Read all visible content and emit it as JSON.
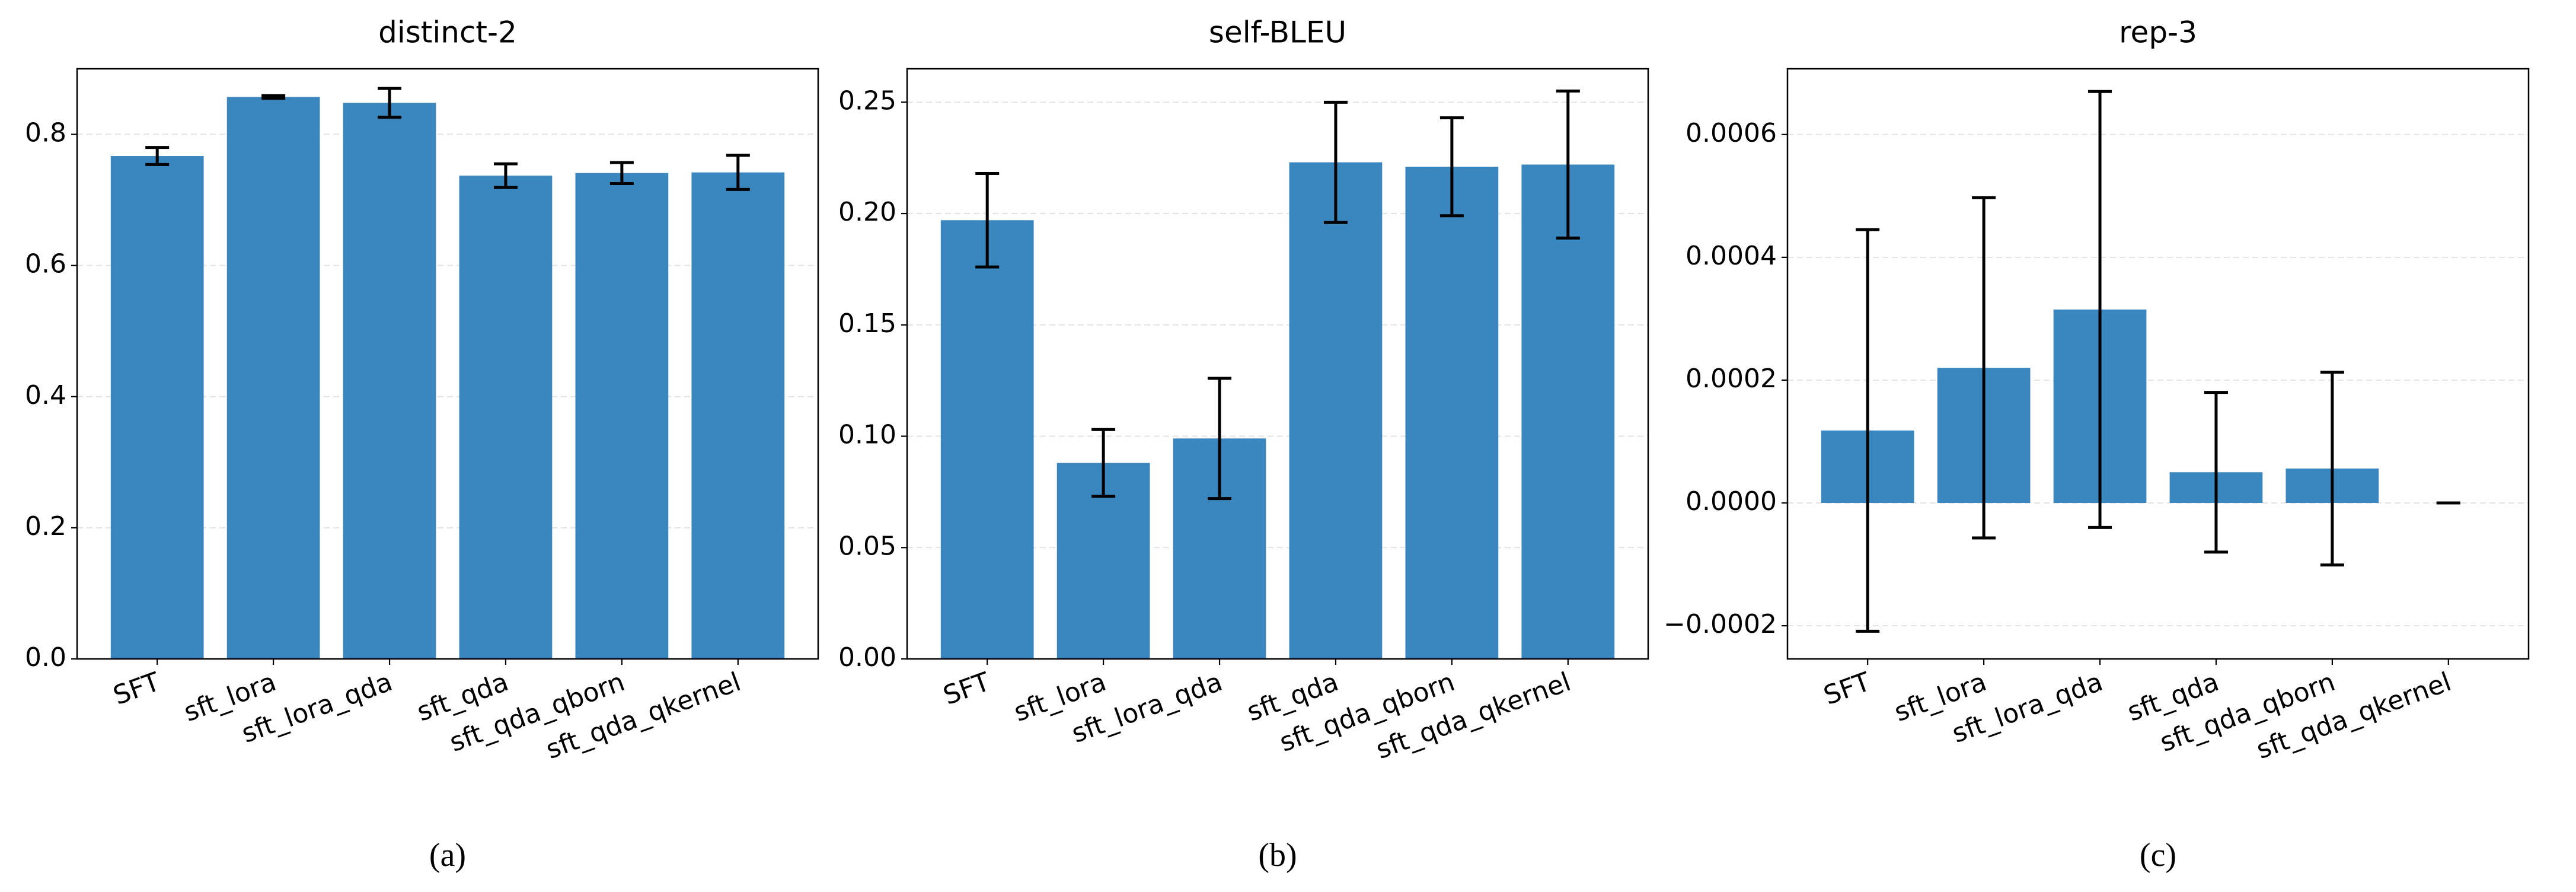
{
  "chart_data": [
    {
      "type": "bar",
      "title": "distinct-2",
      "caption": "(a)",
      "categories": [
        "SFT",
        "sft_lora",
        "sft_lora_qda",
        "sft_qda",
        "sft_qda_qborn",
        "sft_qda_qkernel"
      ],
      "values": [
        0.767,
        0.857,
        0.848,
        0.737,
        0.741,
        0.742
      ],
      "errors": [
        0.013,
        0.002,
        0.022,
        0.018,
        0.016,
        0.026
      ],
      "color": "#3a86bf",
      "ylim": [
        0,
        0.9
      ],
      "yticks": [
        {
          "value": 0,
          "label": "0.0"
        },
        0.2,
        0.4,
        0.6,
        0.8
      ],
      "grid": true
    },
    {
      "type": "bar",
      "title": "self-BLEU",
      "caption": "(b)",
      "categories": [
        "SFT",
        "sft_lora",
        "sft_lora_qda",
        "sft_qda",
        "sft_qda_qborn",
        "sft_qda_qkernel"
      ],
      "values": [
        0.197,
        0.088,
        0.099,
        0.223,
        0.221,
        0.222
      ],
      "errors": [
        0.021,
        0.015,
        0.027,
        0.027,
        0.022,
        0.033
      ],
      "color": "#3a86bf",
      "ylim": [
        0,
        0.265
      ],
      "yticks": [
        {
          "value": 0,
          "label": "0.00"
        },
        0.05,
        {
          "value": 0.1,
          "label": "0.10"
        },
        0.15,
        {
          "value": 0.2,
          "label": "0.20"
        },
        0.25
      ],
      "grid": true
    },
    {
      "type": "bar",
      "title": "rep-3",
      "caption": "(c)",
      "categories": [
        "SFT",
        "sft_lora",
        "sft_lora_qda",
        "sft_qda",
        "sft_qda_qborn",
        "sft_qda_qkernel"
      ],
      "values": [
        0.000118,
        0.00022,
        0.000315,
        5e-05,
        5.6e-05,
        0
      ],
      "errors": [
        0.000327,
        0.000277,
        0.000355,
        0.00013,
        0.000157,
        0
      ],
      "color": "#3a86bf",
      "ylim": [
        -0.000254,
        0.000707
      ],
      "yticks": [
        {
          "value": -0.0002,
          "label": "−0.0002"
        },
        {
          "value": 0,
          "label": "0.0000"
        },
        0.0002,
        0.0004,
        0.0006
      ],
      "grid": true
    }
  ]
}
